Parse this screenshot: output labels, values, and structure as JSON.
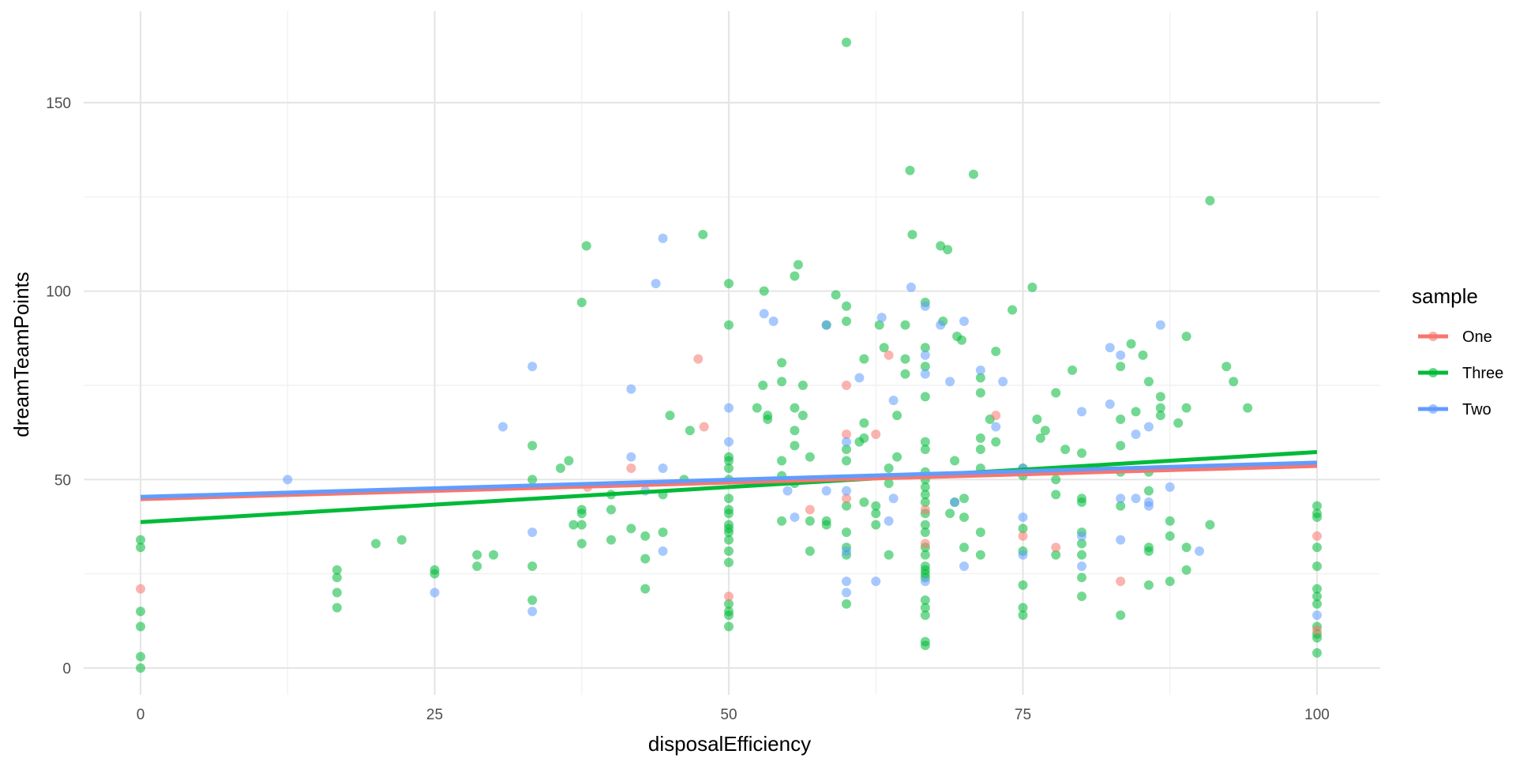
{
  "chart_data": {
    "type": "scatter",
    "title": "",
    "xlabel": "disposalEfficiency",
    "ylabel": "dreamTeamPoints",
    "xlim": [
      -5,
      105
    ],
    "ylim": [
      -7,
      167
    ],
    "x_ticks": [
      "0",
      "25",
      "50",
      "75",
      "100"
    ],
    "y_ticks": [
      "0",
      "50",
      "100",
      "150"
    ],
    "grid": true,
    "legend": {
      "title": "sample",
      "position": "right"
    },
    "series": [
      {
        "name": "One",
        "color": "#F8766D",
        "trend": {
          "x": [
            0,
            100
          ],
          "y": [
            44.8,
            53.6
          ]
        },
        "points": [
          [
            0,
            21
          ],
          [
            38,
            48
          ],
          [
            41.7,
            53
          ],
          [
            47.4,
            82
          ],
          [
            47.9,
            64
          ],
          [
            50,
            19
          ],
          [
            56.9,
            42
          ],
          [
            60,
            62
          ],
          [
            60,
            75
          ],
          [
            60,
            45
          ],
          [
            62.5,
            62
          ],
          [
            63.6,
            83
          ],
          [
            66.7,
            33
          ],
          [
            66.7,
            42
          ],
          [
            72.7,
            67
          ],
          [
            75,
            35
          ],
          [
            77.8,
            32
          ],
          [
            83.3,
            23
          ],
          [
            100,
            35
          ],
          [
            100,
            10
          ]
        ]
      },
      {
        "name": "Three",
        "color": "#00BA38",
        "trend": {
          "x": [
            0,
            100
          ],
          "y": [
            38.7,
            57.3
          ]
        },
        "points": [
          [
            0,
            34
          ],
          [
            0,
            32
          ],
          [
            0,
            15
          ],
          [
            0,
            11
          ],
          [
            0,
            3
          ],
          [
            0,
            0
          ],
          [
            16.7,
            26
          ],
          [
            16.7,
            24
          ],
          [
            16.7,
            20
          ],
          [
            16.7,
            16
          ],
          [
            20,
            33
          ],
          [
            22.2,
            34
          ],
          [
            25,
            26
          ],
          [
            25,
            25
          ],
          [
            28.6,
            30
          ],
          [
            28.6,
            27
          ],
          [
            30,
            30
          ],
          [
            33.3,
            59
          ],
          [
            33.3,
            50
          ],
          [
            33.3,
            27
          ],
          [
            33.3,
            18
          ],
          [
            35.7,
            53
          ],
          [
            36.4,
            55
          ],
          [
            36.8,
            38
          ],
          [
            37.5,
            97
          ],
          [
            37.5,
            42
          ],
          [
            37.5,
            41
          ],
          [
            37.5,
            38
          ],
          [
            37.5,
            33
          ],
          [
            37.9,
            112
          ],
          [
            40,
            46
          ],
          [
            40,
            42
          ],
          [
            40,
            34
          ],
          [
            41.7,
            37
          ],
          [
            42.9,
            29
          ],
          [
            42.9,
            35
          ],
          [
            42.9,
            21
          ],
          [
            44.4,
            46
          ],
          [
            44.4,
            36
          ],
          [
            45,
            67
          ],
          [
            46.2,
            50
          ],
          [
            46.7,
            63
          ],
          [
            47.8,
            115
          ],
          [
            50,
            102
          ],
          [
            50,
            91
          ],
          [
            50,
            56
          ],
          [
            50,
            55
          ],
          [
            50,
            53
          ],
          [
            50,
            50
          ],
          [
            50,
            45
          ],
          [
            50,
            42
          ],
          [
            50,
            41
          ],
          [
            50,
            38
          ],
          [
            50,
            37
          ],
          [
            50,
            36
          ],
          [
            50,
            34
          ],
          [
            50,
            31
          ],
          [
            50,
            28
          ],
          [
            50,
            17
          ],
          [
            50,
            15
          ],
          [
            50,
            14
          ],
          [
            50,
            11
          ],
          [
            52.4,
            69
          ],
          [
            52.9,
            75
          ],
          [
            53,
            100
          ],
          [
            53.3,
            67
          ],
          [
            53.3,
            66
          ],
          [
            54.5,
            76
          ],
          [
            54.5,
            81
          ],
          [
            54.5,
            55
          ],
          [
            54.5,
            51
          ],
          [
            54.5,
            39
          ],
          [
            55.6,
            104
          ],
          [
            55.6,
            69
          ],
          [
            55.6,
            63
          ],
          [
            55.6,
            59
          ],
          [
            55.6,
            49
          ],
          [
            55.9,
            107
          ],
          [
            56.3,
            75
          ],
          [
            56.3,
            67
          ],
          [
            56.9,
            39
          ],
          [
            56.9,
            31
          ],
          [
            56.9,
            56
          ],
          [
            58.3,
            91
          ],
          [
            58.3,
            39
          ],
          [
            58.3,
            38
          ],
          [
            59.1,
            99
          ],
          [
            60,
            166
          ],
          [
            60,
            96
          ],
          [
            60,
            92
          ],
          [
            60,
            58
          ],
          [
            60,
            55
          ],
          [
            60,
            43
          ],
          [
            60,
            36
          ],
          [
            60,
            32
          ],
          [
            60,
            30
          ],
          [
            60,
            17
          ],
          [
            61.1,
            60
          ],
          [
            61.5,
            65
          ],
          [
            61.5,
            82
          ],
          [
            61.5,
            61
          ],
          [
            61.5,
            44
          ],
          [
            62.5,
            43
          ],
          [
            62.5,
            41
          ],
          [
            62.5,
            38
          ],
          [
            62.8,
            91
          ],
          [
            63.2,
            85
          ],
          [
            63.6,
            53
          ],
          [
            63.6,
            49
          ],
          [
            63.6,
            30
          ],
          [
            64.3,
            67
          ],
          [
            64.3,
            56
          ],
          [
            65,
            91
          ],
          [
            65,
            82
          ],
          [
            65,
            78
          ],
          [
            65.4,
            132
          ],
          [
            65.6,
            115
          ],
          [
            66.7,
            97
          ],
          [
            66.7,
            85
          ],
          [
            66.7,
            80
          ],
          [
            66.7,
            72
          ],
          [
            66.7,
            60
          ],
          [
            66.7,
            58
          ],
          [
            66.7,
            52
          ],
          [
            66.7,
            50
          ],
          [
            66.7,
            48
          ],
          [
            66.7,
            46
          ],
          [
            66.7,
            44
          ],
          [
            66.7,
            41
          ],
          [
            66.7,
            38
          ],
          [
            66.7,
            36
          ],
          [
            66.7,
            32
          ],
          [
            66.7,
            30
          ],
          [
            66.7,
            27
          ],
          [
            66.7,
            26
          ],
          [
            66.7,
            25
          ],
          [
            66.7,
            24
          ],
          [
            66.7,
            18
          ],
          [
            66.7,
            16
          ],
          [
            66.7,
            14
          ],
          [
            66.7,
            7
          ],
          [
            66.7,
            6
          ],
          [
            68,
            112
          ],
          [
            68.2,
            92
          ],
          [
            68.6,
            111
          ],
          [
            68.8,
            41
          ],
          [
            69.2,
            44
          ],
          [
            69.2,
            55
          ],
          [
            69.4,
            88
          ],
          [
            69.8,
            87
          ],
          [
            70,
            45
          ],
          [
            70,
            40
          ],
          [
            70,
            32
          ],
          [
            70.8,
            131
          ],
          [
            71.4,
            77
          ],
          [
            71.4,
            73
          ],
          [
            71.4,
            61
          ],
          [
            71.4,
            58
          ],
          [
            71.4,
            53
          ],
          [
            71.4,
            36
          ],
          [
            71.4,
            30
          ],
          [
            72.2,
            66
          ],
          [
            72.7,
            84
          ],
          [
            72.7,
            60
          ],
          [
            74.1,
            95
          ],
          [
            75,
            53
          ],
          [
            75,
            51
          ],
          [
            75,
            37
          ],
          [
            75,
            31
          ],
          [
            75,
            22
          ],
          [
            75,
            16
          ],
          [
            75,
            14
          ],
          [
            75.8,
            101
          ],
          [
            76.2,
            66
          ],
          [
            76.5,
            61
          ],
          [
            76.9,
            63
          ],
          [
            77.8,
            73
          ],
          [
            77.8,
            50
          ],
          [
            77.8,
            46
          ],
          [
            77.8,
            30
          ],
          [
            78.6,
            58
          ],
          [
            79.2,
            79
          ],
          [
            80,
            57
          ],
          [
            80,
            45
          ],
          [
            80,
            44
          ],
          [
            80,
            36
          ],
          [
            80,
            33
          ],
          [
            80,
            30
          ],
          [
            80,
            24
          ],
          [
            80,
            19
          ],
          [
            83.3,
            80
          ],
          [
            83.3,
            66
          ],
          [
            83.3,
            59
          ],
          [
            83.3,
            52
          ],
          [
            83.3,
            43
          ],
          [
            83.3,
            14
          ],
          [
            84.2,
            86
          ],
          [
            84.6,
            68
          ],
          [
            85.2,
            83
          ],
          [
            85.7,
            76
          ],
          [
            85.7,
            52
          ],
          [
            85.7,
            47
          ],
          [
            85.7,
            32
          ],
          [
            85.7,
            31
          ],
          [
            85.7,
            22
          ],
          [
            86.7,
            72
          ],
          [
            86.7,
            69
          ],
          [
            86.7,
            67
          ],
          [
            87.5,
            39
          ],
          [
            87.5,
            35
          ],
          [
            87.5,
            23
          ],
          [
            88.2,
            65
          ],
          [
            88.9,
            88
          ],
          [
            88.9,
            69
          ],
          [
            88.9,
            32
          ],
          [
            88.9,
            26
          ],
          [
            90.9,
            124
          ],
          [
            90.9,
            38
          ],
          [
            92.3,
            80
          ],
          [
            92.9,
            76
          ],
          [
            94.1,
            69
          ],
          [
            100,
            43
          ],
          [
            100,
            41
          ],
          [
            100,
            40
          ],
          [
            100,
            32
          ],
          [
            100,
            27
          ],
          [
            100,
            21
          ],
          [
            100,
            19
          ],
          [
            100,
            17
          ],
          [
            100,
            11
          ],
          [
            100,
            9
          ],
          [
            100,
            8
          ],
          [
            100,
            4
          ]
        ]
      },
      {
        "name": "Two",
        "color": "#619CFF",
        "trend": {
          "x": [
            0,
            100
          ],
          "y": [
            45.4,
            54.5
          ]
        },
        "points": [
          [
            12.5,
            50
          ],
          [
            25,
            20
          ],
          [
            30.8,
            64
          ],
          [
            33.3,
            80
          ],
          [
            33.3,
            36
          ],
          [
            33.3,
            15
          ],
          [
            41.7,
            74
          ],
          [
            41.7,
            56
          ],
          [
            42.9,
            47
          ],
          [
            43.8,
            102
          ],
          [
            44.4,
            114
          ],
          [
            44.4,
            53
          ],
          [
            44.4,
            31
          ],
          [
            50,
            69
          ],
          [
            50,
            60
          ],
          [
            53,
            94
          ],
          [
            53.8,
            92
          ],
          [
            55,
            47
          ],
          [
            55.6,
            40
          ],
          [
            58.3,
            91
          ],
          [
            58.3,
            47
          ],
          [
            60,
            60
          ],
          [
            60,
            47
          ],
          [
            60,
            31
          ],
          [
            60,
            23
          ],
          [
            60,
            20
          ],
          [
            61.1,
            77
          ],
          [
            62.5,
            23
          ],
          [
            63,
            93
          ],
          [
            63.6,
            39
          ],
          [
            64,
            71
          ],
          [
            64,
            45
          ],
          [
            65.5,
            101
          ],
          [
            66.7,
            83
          ],
          [
            66.7,
            78
          ],
          [
            66.7,
            96
          ],
          [
            66.7,
            23
          ],
          [
            68,
            91
          ],
          [
            68.8,
            76
          ],
          [
            69.2,
            44
          ],
          [
            70,
            92
          ],
          [
            70,
            27
          ],
          [
            71.4,
            79
          ],
          [
            72.7,
            64
          ],
          [
            73.3,
            76
          ],
          [
            75,
            53
          ],
          [
            75,
            40
          ],
          [
            75,
            30
          ],
          [
            80,
            68
          ],
          [
            80,
            35
          ],
          [
            80,
            27
          ],
          [
            82.4,
            85
          ],
          [
            82.4,
            70
          ],
          [
            83.3,
            83
          ],
          [
            83.3,
            45
          ],
          [
            83.3,
            34
          ],
          [
            84.6,
            45
          ],
          [
            84.6,
            62
          ],
          [
            85.7,
            64
          ],
          [
            85.7,
            44
          ],
          [
            85.7,
            43
          ],
          [
            86.7,
            91
          ],
          [
            87.5,
            48
          ],
          [
            90,
            31
          ],
          [
            100,
            14
          ]
        ]
      }
    ]
  }
}
